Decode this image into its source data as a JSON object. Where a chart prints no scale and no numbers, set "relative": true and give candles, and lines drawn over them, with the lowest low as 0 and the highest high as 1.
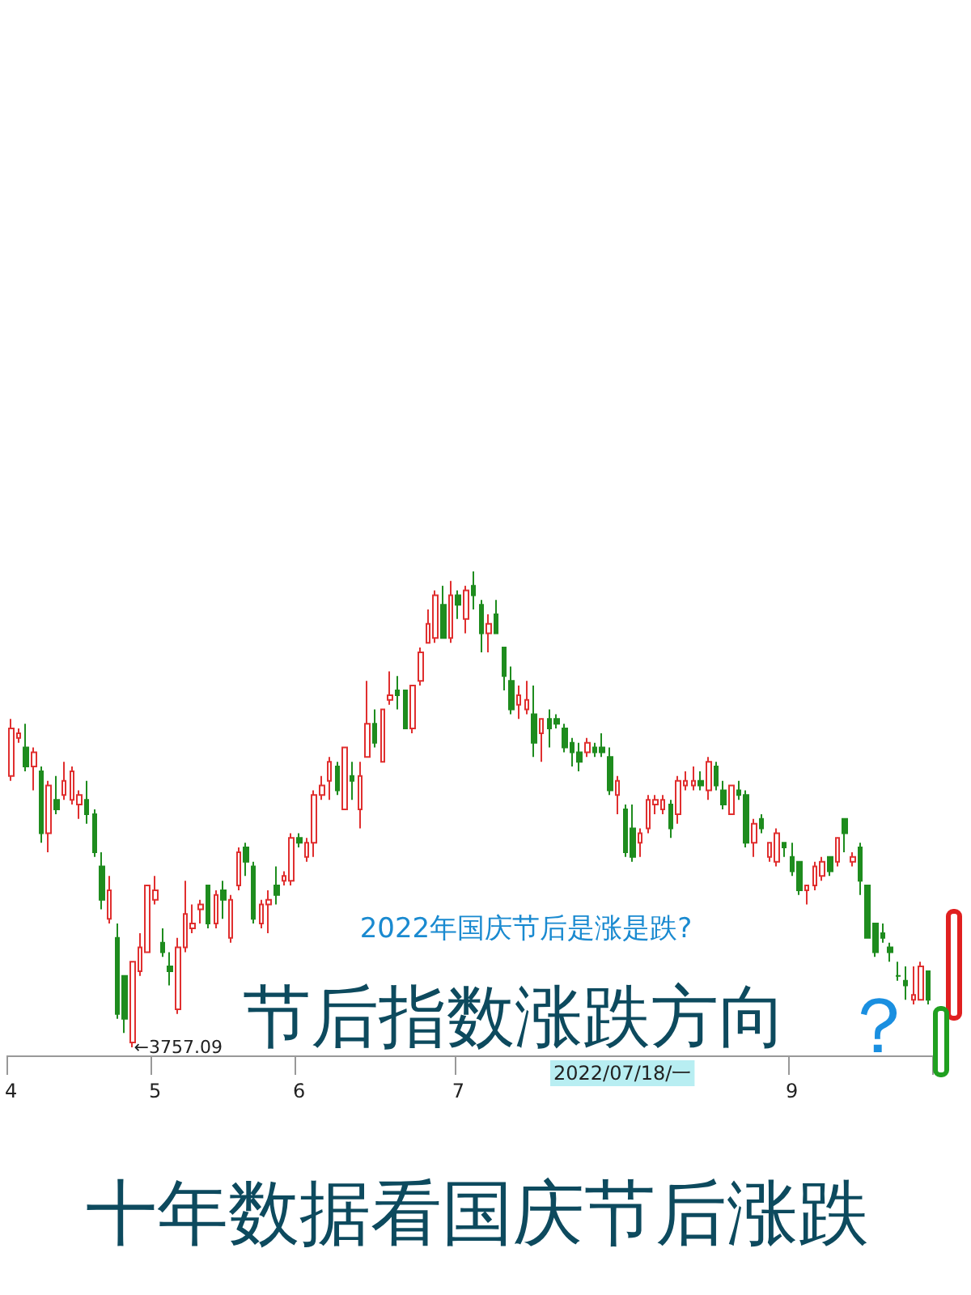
{
  "chart_data": {
    "type": "candlestick",
    "relative": true,
    "categories": [
      "4",
      null,
      null,
      null,
      null,
      null,
      null,
      null,
      null,
      null,
      null,
      null,
      null,
      null,
      null,
      null,
      null,
      null,
      null,
      "5",
      null,
      null,
      null,
      null,
      null,
      null,
      null,
      null,
      null,
      null,
      null,
      null,
      null,
      null,
      null,
      null,
      null,
      null,
      "6",
      null,
      null,
      null,
      null,
      null,
      null,
      null,
      null,
      null,
      null,
      null,
      null,
      null,
      null,
      null,
      null,
      null,
      null,
      null,
      null,
      "7",
      null,
      null,
      null,
      null,
      null,
      null,
      null,
      null,
      null,
      null,
      null,
      null,
      null,
      null,
      null,
      null,
      null,
      null,
      null,
      null,
      null,
      null,
      null,
      null,
      null,
      null,
      null,
      null,
      null,
      null,
      null,
      null,
      null,
      null,
      null,
      null,
      null,
      null,
      null,
      null,
      null,
      null,
      null,
      "9",
      null,
      null,
      null,
      null,
      null,
      null,
      null,
      null,
      null,
      null,
      null,
      null,
      null,
      null,
      null,
      null,
      null,
      null
    ],
    "ohlc": [
      [
        0.57,
        0.69,
        0.56,
        0.67
      ],
      [
        0.65,
        0.67,
        0.64,
        0.66
      ],
      [
        0.63,
        0.68,
        0.58,
        0.59
      ],
      [
        0.59,
        0.63,
        0.54,
        0.62
      ],
      [
        0.58,
        0.59,
        0.43,
        0.45
      ],
      [
        0.45,
        0.56,
        0.41,
        0.55
      ],
      [
        0.52,
        0.57,
        0.49,
        0.5
      ],
      [
        0.53,
        0.6,
        0.52,
        0.56
      ],
      [
        0.52,
        0.59,
        0.51,
        0.58
      ],
      [
        0.51,
        0.54,
        0.48,
        0.53
      ],
      [
        0.52,
        0.56,
        0.47,
        0.49
      ],
      [
        0.49,
        0.5,
        0.4,
        0.41
      ],
      [
        0.38,
        0.41,
        0.29,
        0.31
      ],
      [
        0.27,
        0.36,
        0.26,
        0.33
      ],
      [
        0.23,
        0.26,
        0.06,
        0.07
      ],
      [
        0.15,
        0.15,
        0.03,
        0.06
      ],
      [
        0.01,
        0.18,
        0,
        0.18
      ],
      [
        0.16,
        0.24,
        0.15,
        0.21
      ],
      [
        0.2,
        0.34,
        0.2,
        0.34
      ],
      [
        0.31,
        0.36,
        0.3,
        0.33
      ],
      [
        0.22,
        0.25,
        0.19,
        0.2
      ],
      [
        0.17,
        0.2,
        0.13,
        0.16
      ],
      [
        0.08,
        0.23,
        0.07,
        0.21
      ],
      [
        0.21,
        0.35,
        0.2,
        0.28
      ],
      [
        0.25,
        0.3,
        0.24,
        0.26
      ],
      [
        0.29,
        0.31,
        0.26,
        0.3
      ],
      [
        0.34,
        0.34,
        0.25,
        0.26
      ],
      [
        0.26,
        0.33,
        0.25,
        0.32
      ],
      [
        0.33,
        0.35,
        0.27,
        0.31
      ],
      [
        0.23,
        0.32,
        0.22,
        0.31
      ],
      [
        0.34,
        0.42,
        0.33,
        0.41
      ],
      [
        0.42,
        0.43,
        0.36,
        0.39
      ],
      [
        0.38,
        0.39,
        0.26,
        0.27
      ],
      [
        0.26,
        0.31,
        0.25,
        0.3
      ],
      [
        0.3,
        0.33,
        0.24,
        0.31
      ],
      [
        0.34,
        0.38,
        0.3,
        0.32
      ],
      [
        0.35,
        0.37,
        0.34,
        0.36
      ],
      [
        0.35,
        0.45,
        0.34,
        0.44
      ],
      [
        0.44,
        0.45,
        0.42,
        0.43
      ],
      [
        0.4,
        0.44,
        0.39,
        0.43
      ],
      [
        0.43,
        0.54,
        0.4,
        0.53
      ],
      [
        0.53,
        0.57,
        0.52,
        0.55
      ],
      [
        0.56,
        0.61,
        0.52,
        0.6
      ],
      [
        0.59,
        0.6,
        0.53,
        0.54
      ],
      [
        0.5,
        0.63,
        0.5,
        0.63
      ],
      [
        0.57,
        0.6,
        0.52,
        0.56
      ],
      [
        0.5,
        0.6,
        0.46,
        0.57
      ],
      [
        0.61,
        0.77,
        0.61,
        0.68
      ],
      [
        0.68,
        0.71,
        0.63,
        0.64
      ],
      [
        0.6,
        0.71,
        0.6,
        0.71
      ],
      [
        0.73,
        0.79,
        0.72,
        0.74
      ],
      [
        0.75,
        0.78,
        0.71,
        0.74
      ],
      [
        0.75,
        0.75,
        0.67,
        0.67
      ],
      [
        0.67,
        0.76,
        0.66,
        0.76
      ],
      [
        0.77,
        0.84,
        0.76,
        0.83
      ],
      [
        0.85,
        0.92,
        0.85,
        0.89
      ],
      [
        0.86,
        0.96,
        0.85,
        0.95
      ],
      [
        0.93,
        0.97,
        0.86,
        0.86
      ],
      [
        0.86,
        0.98,
        0.85,
        0.95
      ],
      [
        0.95,
        0.96,
        0.9,
        0.93
      ],
      [
        0.9,
        0.97,
        0.87,
        0.96
      ],
      [
        0.97,
        1,
        0.92,
        0.95
      ],
      [
        0.93,
        0.94,
        0.83,
        0.87
      ],
      [
        0.87,
        0.91,
        0.83,
        0.89
      ],
      [
        0.91,
        0.94,
        0.87,
        0.87
      ],
      [
        0.84,
        0.84,
        0.75,
        0.78
      ],
      [
        0.77,
        0.8,
        0.7,
        0.71
      ],
      [
        0.72,
        0.76,
        0.69,
        0.74
      ],
      [
        0.71,
        0.77,
        0.7,
        0.73
      ],
      [
        0.7,
        0.76,
        0.61,
        0.64
      ],
      [
        0.66,
        0.69,
        0.6,
        0.69
      ],
      [
        0.69,
        0.71,
        0.63,
        0.67
      ],
      [
        0.69,
        0.7,
        0.67,
        0.68
      ],
      [
        0.67,
        0.68,
        0.62,
        0.63
      ],
      [
        0.64,
        0.65,
        0.59,
        0.62
      ],
      [
        0.62,
        0.64,
        0.58,
        0.6
      ],
      [
        0.62,
        0.65,
        0.61,
        0.64
      ],
      [
        0.63,
        0.64,
        0.61,
        0.62
      ],
      [
        0.63,
        0.66,
        0.61,
        0.62
      ],
      [
        0.61,
        0.63,
        0.53,
        0.54
      ],
      [
        0.53,
        0.57,
        0.49,
        0.56
      ],
      [
        0.5,
        0.51,
        0.4,
        0.41
      ],
      [
        0.46,
        0.51,
        0.39,
        0.4
      ],
      [
        0.43,
        0.46,
        0.4,
        0.45
      ],
      [
        0.46,
        0.53,
        0.45,
        0.52
      ],
      [
        0.51,
        0.53,
        0.49,
        0.52
      ],
      [
        0.5,
        0.53,
        0.49,
        0.52
      ],
      [
        0.51,
        0.52,
        0.44,
        0.46
      ],
      [
        0.49,
        0.57,
        0.47,
        0.56
      ],
      [
        0.55,
        0.58,
        0.54,
        0.56
      ],
      [
        0.55,
        0.59,
        0.54,
        0.56
      ],
      [
        0.56,
        0.58,
        0.54,
        0.55
      ],
      [
        0.54,
        0.61,
        0.52,
        0.6
      ],
      [
        0.59,
        0.6,
        0.54,
        0.55
      ],
      [
        0.54,
        0.56,
        0.5,
        0.51
      ],
      [
        0.49,
        0.55,
        0.49,
        0.55
      ],
      [
        0.54,
        0.56,
        0.52,
        0.53
      ],
      [
        0.53,
        0.54,
        0.42,
        0.43
      ],
      [
        0.43,
        0.48,
        0.4,
        0.47
      ],
      [
        0.48,
        0.49,
        0.45,
        0.46
      ],
      [
        0.4,
        0.43,
        0.39,
        0.43
      ],
      [
        0.39,
        0.46,
        0.38,
        0.45
      ],
      [
        0.43,
        0.43,
        0.4,
        0.42
      ],
      [
        0.4,
        0.43,
        0.36,
        0.37
      ],
      [
        0.39,
        0.39,
        0.32,
        0.33
      ],
      [
        0.33,
        0.34,
        0.3,
        0.34
      ],
      [
        0.34,
        0.39,
        0.33,
        0.38
      ],
      [
        0.36,
        0.4,
        0.35,
        0.39
      ],
      [
        0.4,
        0.4,
        0.36,
        0.37
      ],
      [
        0.39,
        0.44,
        0.38,
        0.44
      ],
      [
        0.48,
        0.48,
        0.41,
        0.45
      ],
      [
        0.39,
        0.41,
        0.38,
        0.4
      ],
      [
        0.42,
        0.43,
        0.32,
        0.35
      ],
      [
        0.34,
        0.34,
        0.23,
        0.23
      ],
      [
        0.26,
        0.26,
        0.19,
        0.2
      ],
      [
        0.24,
        0.26,
        0.22,
        0.23
      ],
      [
        0.21,
        0.22,
        0.18,
        0.2
      ],
      [
        0.15,
        0.18,
        0.14,
        0.15
      ],
      [
        0.14,
        0.17,
        0.1,
        0.13
      ],
      [
        0.1,
        0.17,
        0.09,
        0.11
      ],
      [
        0.1,
        0.18,
        0.1,
        0.17
      ],
      [
        0.16,
        0.16,
        0.09,
        0.1
      ]
    ],
    "annotations": [
      "←3757.09",
      "2022/07/18/一",
      "2022年国庆节后是涨是跌?",
      "节后指数涨跌方向",
      "？",
      "十年数据看国庆节后涨跌"
    ]
  }
}
